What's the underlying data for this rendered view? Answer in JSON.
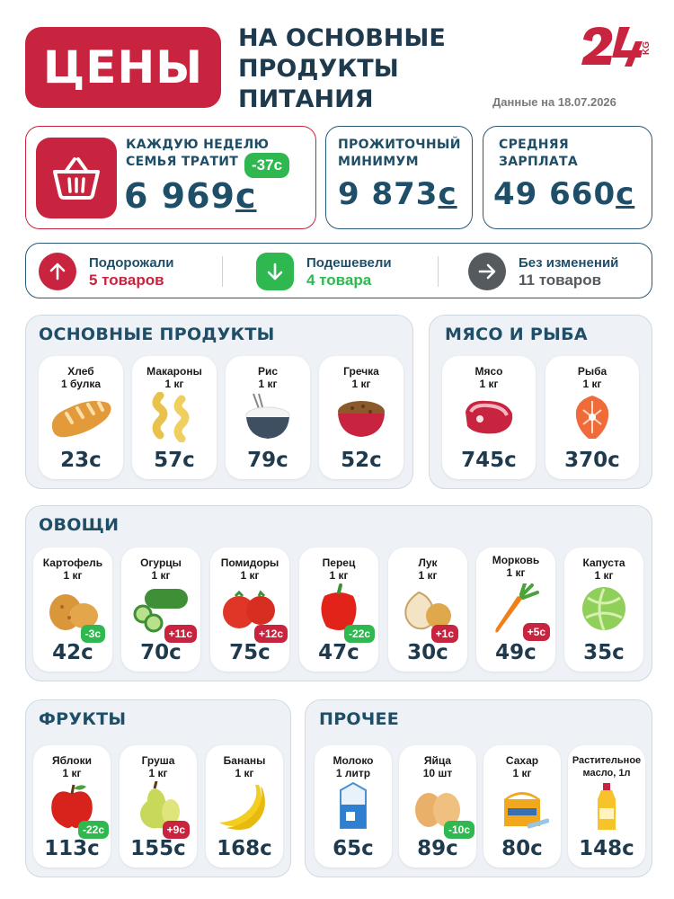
{
  "header": {
    "badge": "ЦЕНЫ",
    "subtitle_lines": [
      "НА ОСНОВНЫЕ",
      "ПРОДУКТЫ",
      "ПИТАНИЯ"
    ],
    "logo_text": "24",
    "logo_suffix": "KG",
    "date": "Данные на 18.07.2026"
  },
  "stats": {
    "weekly": {
      "label1": "КАЖДУЮ НЕДЕЛЮ",
      "label2": "СЕМЬЯ ТРАТИТ",
      "value": "6 969",
      "currency": "с",
      "delta": "-37с"
    },
    "minimum": {
      "label1": "ПРОЖИТОЧНЫЙ",
      "label2": "МИНИМУМ",
      "value": "9 873",
      "currency": "с"
    },
    "salary": {
      "label1": "СРЕДНЯЯ",
      "label2": "ЗАРПЛАТА",
      "value": "49 660",
      "currency": "с"
    }
  },
  "summary": {
    "up": {
      "label": "Подорожали",
      "count": "5 товаров",
      "color": "#c8243f"
    },
    "down": {
      "label": "Подешевели",
      "count": "4 товара",
      "color": "#2fb84f"
    },
    "same": {
      "label": "Без изменений",
      "count": "11 товаров",
      "color": "#555a5e"
    }
  },
  "sections": {
    "basic": {
      "title": "ОСНОВНЫЕ ПРОДУКТЫ",
      "items": [
        {
          "name": "Хлеб",
          "unit": "1 булка",
          "price": "23с",
          "icon": "bread-icon"
        },
        {
          "name": "Макароны",
          "unit": "1 кг",
          "price": "57с",
          "icon": "pasta-icon"
        },
        {
          "name": "Рис",
          "unit": "1 кг",
          "price": "79с",
          "icon": "rice-icon"
        },
        {
          "name": "Гречка",
          "unit": "1 кг",
          "price": "52с",
          "icon": "buckwheat-icon"
        }
      ]
    },
    "meat": {
      "title": "МЯСО И РЫБА",
      "items": [
        {
          "name": "Мясо",
          "unit": "1 кг",
          "price": "745с",
          "icon": "meat-icon"
        },
        {
          "name": "Рыба",
          "unit": "1 кг",
          "price": "370с",
          "icon": "fish-icon"
        }
      ]
    },
    "veg": {
      "title": "ОВОЩИ",
      "items": [
        {
          "name": "Картофель",
          "unit": "1 кг",
          "price": "42с",
          "delta": "-3с",
          "icon": "potato-icon"
        },
        {
          "name": "Огурцы",
          "unit": "1 кг",
          "price": "70с",
          "delta": "+11с",
          "icon": "cucumber-icon"
        },
        {
          "name": "Помидоры",
          "unit": "1 кг",
          "price": "75с",
          "delta": "+12с",
          "icon": "tomato-icon"
        },
        {
          "name": "Перец",
          "unit": "1 кг",
          "price": "47с",
          "delta": "-22с",
          "icon": "pepper-icon"
        },
        {
          "name": "Лук",
          "unit": "1 кг",
          "price": "30с",
          "delta": "+1с",
          "icon": "onion-icon"
        },
        {
          "name": "Морковь",
          "unit": "1 кг",
          "price": "49с",
          "delta": "+5с",
          "icon": "carrot-icon"
        },
        {
          "name": "Капуста",
          "unit": "1 кг",
          "price": "35с",
          "icon": "cabbage-icon"
        }
      ]
    },
    "fruit": {
      "title": "ФРУКТЫ",
      "items": [
        {
          "name": "Яблоки",
          "unit": "1 кг",
          "price": "113с",
          "delta": "-22с",
          "icon": "apple-icon"
        },
        {
          "name": "Груша",
          "unit": "1 кг",
          "price": "155с",
          "delta": "+9с",
          "icon": "pear-icon"
        },
        {
          "name": "Бананы",
          "unit": "1 кг",
          "price": "168с",
          "icon": "banana-icon"
        }
      ]
    },
    "other": {
      "title": "ПРОЧЕЕ",
      "items": [
        {
          "name": "Молоко",
          "unit": "1 литр",
          "price": "65с",
          "icon": "milk-icon"
        },
        {
          "name": "Яйца",
          "unit": "10 шт",
          "price": "89с",
          "delta": "-10с",
          "icon": "eggs-icon"
        },
        {
          "name": "Сахар",
          "unit": "1 кг",
          "price": "80с",
          "icon": "sugar-icon"
        },
        {
          "name": "Растительное",
          "unit": "масло, 1л",
          "price": "148с",
          "icon": "oil-icon"
        }
      ]
    }
  },
  "colors": {
    "accent": "#c8243f",
    "dark": "#1f4e68",
    "green": "#2fb84f",
    "panel": "#eef2f6"
  }
}
